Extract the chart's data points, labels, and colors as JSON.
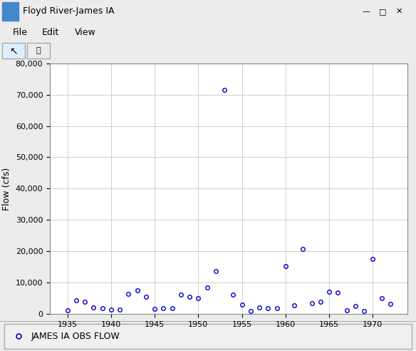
{
  "years": [
    1935,
    1936,
    1937,
    1938,
    1939,
    1940,
    1941,
    1942,
    1943,
    1944,
    1945,
    1946,
    1947,
    1948,
    1949,
    1950,
    1951,
    1952,
    1953,
    1954,
    1955,
    1956,
    1957,
    1958,
    1959,
    1960,
    1961,
    1962,
    1963,
    1964,
    1965,
    1966,
    1967,
    1968,
    1969,
    1970,
    1971,
    1972
  ],
  "flows": [
    1200,
    4500,
    4000,
    2200,
    1800,
    1500,
    1500,
    6500,
    7500,
    5500,
    1700,
    1800,
    2000,
    6200,
    5500,
    5000,
    8500,
    13700,
    71500,
    6200,
    3000,
    900,
    2100,
    1800,
    2000,
    15300,
    2700,
    20800,
    3500,
    4000,
    7200,
    6800,
    1200,
    2500,
    1100,
    17500,
    5000,
    3200
  ],
  "marker_color": "#0000CD",
  "marker_size": 4,
  "marker_style": "o",
  "marker_facecolor": "none",
  "ylabel": "Flow (cfs)",
  "xlabel": "",
  "ylim": [
    0,
    80000
  ],
  "xlim": [
    1933,
    1974
  ],
  "yticks": [
    0,
    10000,
    20000,
    30000,
    40000,
    50000,
    60000,
    70000,
    80000
  ],
  "xticks": [
    1935,
    1940,
    1945,
    1950,
    1955,
    1960,
    1965,
    1970
  ],
  "grid_color": "#d0d0d0",
  "plot_bg": "#ffffff",
  "legend_label": "JAMES IA OBS FLOW",
  "window_title": "Floyd River-James IA",
  "menu_items": [
    "File",
    "Edit",
    "View"
  ],
  "win_bg": "#f0f0f0",
  "title_bar_bg": "#0078d7",
  "title_bar_text": "#ffffff",
  "frame_bg": "#ececec",
  "statusbar_bg": "#f0f0f0",
  "border_color": "#999999"
}
